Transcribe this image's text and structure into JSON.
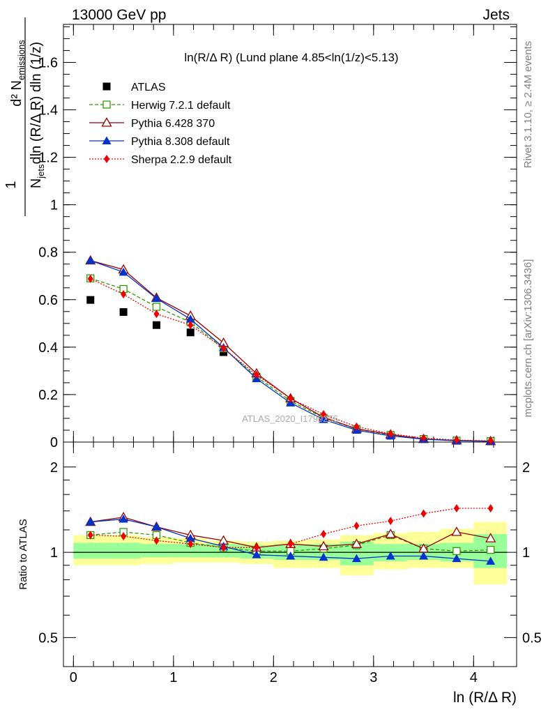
{
  "header": {
    "left": "13000 GeV pp",
    "right": "Jets"
  },
  "side_labels": {
    "rivet": "Rivet 3.1.10, ≥ 2.4M events",
    "mcplots": "mcplots.cern.ch [arXiv:1306.3436]"
  },
  "watermark": "ATLAS_2020_I1790256",
  "main_panel": {
    "title": "ln(R/Δ R) (Lund plane 4.85<ln(1/z)<5.13)",
    "ylabel_line1": "1",
    "ylabel_line2": "d² N",
    "ylabel_sub1": "emissions",
    "ylabel_line3": "N",
    "ylabel_sub2": "jets",
    "ylabel_line3b": "dln (R/Δ R) dln (1/z)"
  },
  "ratio_panel": {
    "ylabel": "Ratio to ATLAS"
  },
  "xlabel": "ln (R/Δ R)",
  "legend": [
    {
      "label": "ATLAS",
      "color": "#000000",
      "marker": "filled-square",
      "dash": ""
    },
    {
      "label": "Herwig 7.2.1 default",
      "color": "#339900",
      "marker": "open-square",
      "dash": "5,3"
    },
    {
      "label": "Pythia 6.428 370",
      "color": "#990000",
      "marker": "open-triangle",
      "dash": ""
    },
    {
      "label": "Pythia 8.308 default",
      "color": "#0033cc",
      "marker": "filled-triangle",
      "dash": ""
    },
    {
      "label": "Sherpa 2.2.9 default",
      "color": "#ee0000",
      "marker": "filled-diamond",
      "dash": "2,2"
    }
  ],
  "chart_data": [
    {
      "type": "line",
      "x": [
        0.17,
        0.5,
        0.83,
        1.17,
        1.5,
        1.83,
        2.17,
        2.5,
        2.83,
        3.17,
        3.5,
        3.83,
        4.17
      ],
      "x_edges": [
        0,
        0.333,
        0.667,
        1.0,
        1.333,
        1.667,
        2.0,
        2.333,
        2.667,
        3.0,
        3.333,
        3.667,
        4.0,
        4.333
      ],
      "xlim": [
        -0.1,
        4.43
      ],
      "ylim": [
        0,
        1.76
      ],
      "yticks": [
        0,
        0.2,
        0.4,
        0.6,
        0.8,
        1,
        1.2,
        1.4,
        1.6
      ],
      "series": [
        {
          "name": "ATLAS",
          "values": [
            0.599,
            0.548,
            0.493,
            0.462,
            0.379,
            0.272,
            0.171,
            0.099,
            0.052,
            0.027,
            0.0125,
            0.0058,
            0.0035
          ]
        },
        {
          "name": "Herwig 7.2.1 default",
          "values": [
            0.69,
            0.645,
            0.57,
            0.505,
            0.395,
            0.275,
            0.173,
            0.102,
            0.055,
            0.03,
            0.0127,
            0.0059,
            0.0036
          ]
        },
        {
          "name": "Pythia 6.428 370",
          "values": [
            0.765,
            0.727,
            0.608,
            0.532,
            0.418,
            0.289,
            0.184,
            0.104,
            0.056,
            0.032,
            0.0129,
            0.0068,
            0.0039
          ]
        },
        {
          "name": "Pythia 8.308 default",
          "values": [
            0.765,
            0.716,
            0.605,
            0.518,
            0.398,
            0.267,
            0.165,
            0.095,
            0.05,
            0.026,
            0.0121,
            0.0054,
            0.0032
          ]
        },
        {
          "name": "Sherpa 2.2.9 default",
          "values": [
            0.688,
            0.623,
            0.54,
            0.493,
            0.395,
            0.283,
            0.183,
            0.117,
            0.065,
            0.035,
            0.0171,
            0.0083,
            0.005
          ]
        }
      ]
    },
    {
      "type": "line",
      "x": [
        0.17,
        0.5,
        0.83,
        1.17,
        1.5,
        1.83,
        2.17,
        2.5,
        2.83,
        3.17,
        3.5,
        3.83,
        4.17
      ],
      "xlim": [
        -0.1,
        4.43
      ],
      "ylim": [
        0.395,
        2.45
      ],
      "log_y": true,
      "yticks": [
        0.5,
        1,
        2
      ],
      "xticks": [
        0,
        1,
        2,
        3,
        4
      ],
      "band_inner": [
        [
          0.95,
          1.08
        ],
        [
          0.95,
          1.08
        ],
        [
          0.96,
          1.07
        ],
        [
          0.96,
          1.07
        ],
        [
          0.96,
          1.07
        ],
        [
          0.95,
          1.06
        ],
        [
          0.94,
          1.07
        ],
        [
          0.94,
          1.07
        ],
        [
          0.9,
          1.09
        ],
        [
          0.93,
          1.07
        ],
        [
          0.94,
          1.07
        ],
        [
          0.93,
          1.08
        ],
        [
          0.88,
          1.16
        ]
      ],
      "band_outer": [
        [
          0.9,
          1.15
        ],
        [
          0.9,
          1.15
        ],
        [
          0.91,
          1.13
        ],
        [
          0.92,
          1.12
        ],
        [
          0.92,
          1.1
        ],
        [
          0.91,
          1.09
        ],
        [
          0.88,
          1.1
        ],
        [
          0.88,
          1.11
        ],
        [
          0.83,
          1.15
        ],
        [
          0.87,
          1.17
        ],
        [
          0.88,
          1.18
        ],
        [
          0.88,
          1.21
        ],
        [
          0.77,
          1.28
        ]
      ],
      "series": [
        {
          "name": "Herwig 7.2.1 default",
          "values": [
            1.15,
            1.18,
            1.15,
            1.08,
            1.04,
            1.01,
            1.01,
            1.03,
            1.06,
            1.15,
            1.03,
            1.01,
            1.02
          ]
        },
        {
          "name": "Pythia 6.428 370",
          "values": [
            1.28,
            1.33,
            1.23,
            1.15,
            1.1,
            1.04,
            1.07,
            1.05,
            1.07,
            1.16,
            1.03,
            1.18,
            1.12
          ]
        },
        {
          "name": "Pythia 8.308 default",
          "values": [
            1.28,
            1.31,
            1.23,
            1.12,
            1.05,
            0.98,
            0.97,
            0.96,
            0.95,
            0.97,
            0.97,
            0.95,
            0.93
          ]
        },
        {
          "name": "Sherpa 2.2.9 default",
          "values": [
            1.15,
            1.14,
            1.1,
            1.07,
            1.04,
            1.04,
            1.07,
            1.16,
            1.24,
            1.29,
            1.37,
            1.43,
            1.43
          ]
        }
      ]
    }
  ]
}
